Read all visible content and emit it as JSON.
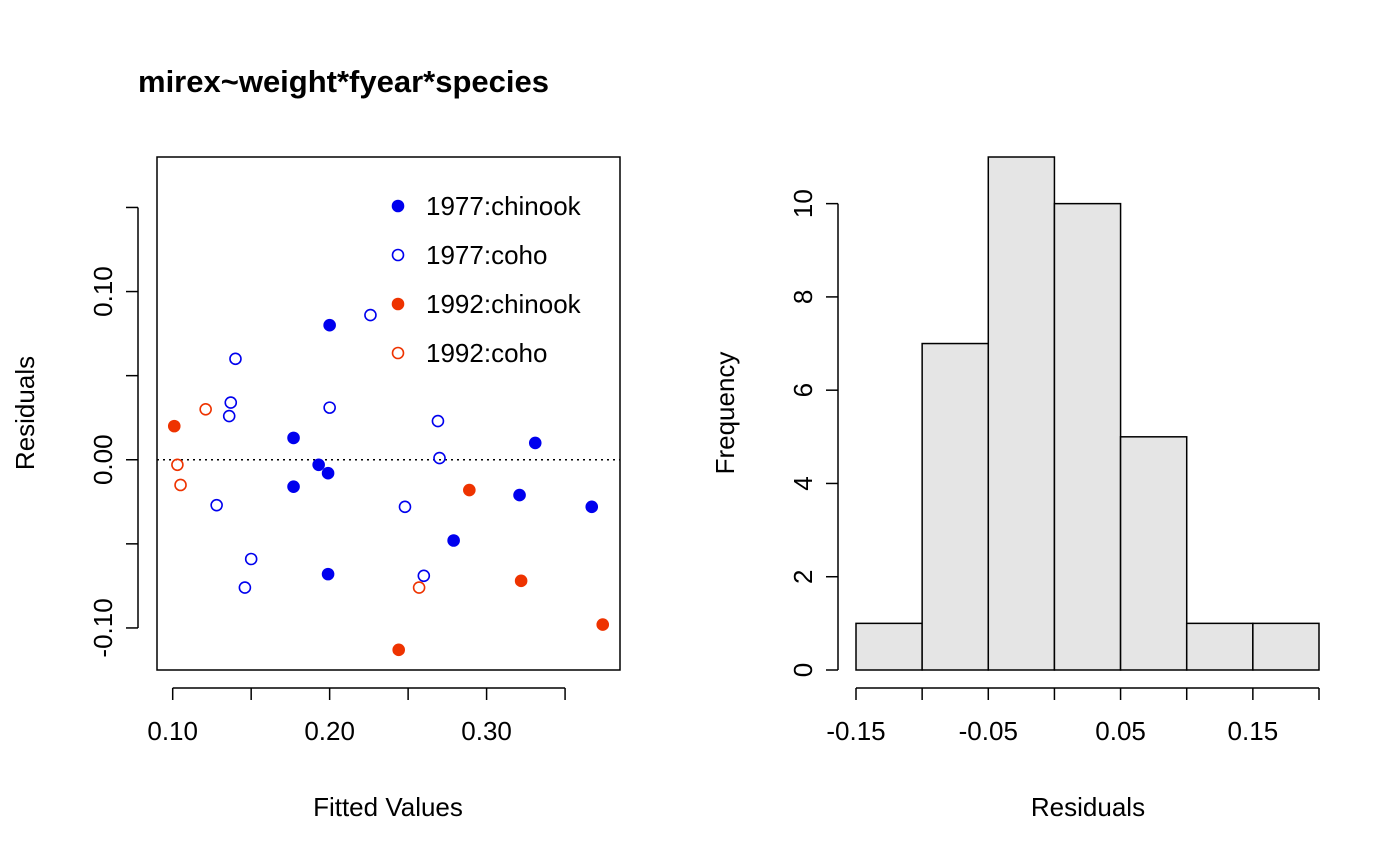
{
  "chart_data": [
    {
      "type": "scatter",
      "title": "mirex~weight*fyear*species",
      "xlabel": "Fitted Values",
      "ylabel": "Residuals",
      "xlim": [
        0.09,
        0.385
      ],
      "ylim": [
        -0.125,
        0.18
      ],
      "xticks": [
        "0.10",
        "0.20",
        "0.30"
      ],
      "xtick_values": [
        0.1,
        0.2,
        0.3
      ],
      "yticks": [
        "-0.10",
        "0.00",
        "0.10"
      ],
      "ytick_values": [
        -0.1,
        0.0,
        0.1
      ],
      "reference_line_y": 0,
      "legend_position": "top-right",
      "series": [
        {
          "name": "1977:chinook",
          "color": "#0000ee",
          "filled": true,
          "points": [
            [
              0.2,
              0.08
            ],
            [
              0.177,
              0.013
            ],
            [
              0.193,
              -0.003
            ],
            [
              0.199,
              -0.008
            ],
            [
              0.177,
              -0.016
            ],
            [
              0.199,
              -0.068
            ],
            [
              0.279,
              -0.048
            ],
            [
              0.331,
              0.01
            ],
            [
              0.321,
              -0.021
            ],
            [
              0.367,
              -0.028
            ]
          ]
        },
        {
          "name": "1977:coho",
          "color": "#0000ee",
          "filled": false,
          "points": [
            [
              0.226,
              0.086
            ],
            [
              0.14,
              0.06
            ],
            [
              0.137,
              0.034
            ],
            [
              0.136,
              0.026
            ],
            [
              0.2,
              0.031
            ],
            [
              0.269,
              0.023
            ],
            [
              0.27,
              0.001
            ],
            [
              0.128,
              -0.027
            ],
            [
              0.248,
              -0.028
            ],
            [
              0.15,
              -0.059
            ],
            [
              0.146,
              -0.076
            ],
            [
              0.26,
              -0.069
            ]
          ]
        },
        {
          "name": "1992:chinook",
          "color": "#ee3300",
          "filled": true,
          "points": [
            [
              0.101,
              0.02
            ],
            [
              0.289,
              -0.018
            ],
            [
              0.322,
              -0.072
            ],
            [
              0.374,
              -0.098
            ],
            [
              0.244,
              -0.113
            ]
          ]
        },
        {
          "name": "1992:coho",
          "color": "#ee3300",
          "filled": false,
          "points": [
            [
              0.121,
              0.03
            ],
            [
              0.103,
              -0.003
            ],
            [
              0.105,
              -0.015
            ],
            [
              0.257,
              -0.076
            ]
          ]
        }
      ]
    },
    {
      "type": "bar",
      "subtype": "histogram",
      "xlabel": "Residuals",
      "ylabel": "Frequency",
      "bins": [
        [
          -0.15,
          -0.1
        ],
        [
          -0.1,
          -0.05
        ],
        [
          -0.05,
          0.0
        ],
        [
          0.0,
          0.05
        ],
        [
          0.05,
          0.1
        ],
        [
          0.1,
          0.15
        ],
        [
          0.15,
          0.2
        ]
      ],
      "values": [
        1,
        7,
        11,
        10,
        5,
        1,
        1
      ],
      "bar_color": "#e5e5e5",
      "xlim": [
        -0.15,
        0.2
      ],
      "ylim": [
        0,
        11
      ],
      "xtick_values": [
        -0.15,
        -0.1,
        -0.05,
        0.0,
        0.05,
        0.1,
        0.15,
        0.2
      ],
      "xtick_labels": [
        "-0.15",
        "",
        "-0.05",
        "",
        "0.05",
        "",
        "0.15",
        ""
      ],
      "ytick_values": [
        0,
        2,
        4,
        6,
        8,
        10
      ],
      "yticks": [
        "0",
        "2",
        "4",
        "6",
        "8",
        "10"
      ]
    }
  ]
}
